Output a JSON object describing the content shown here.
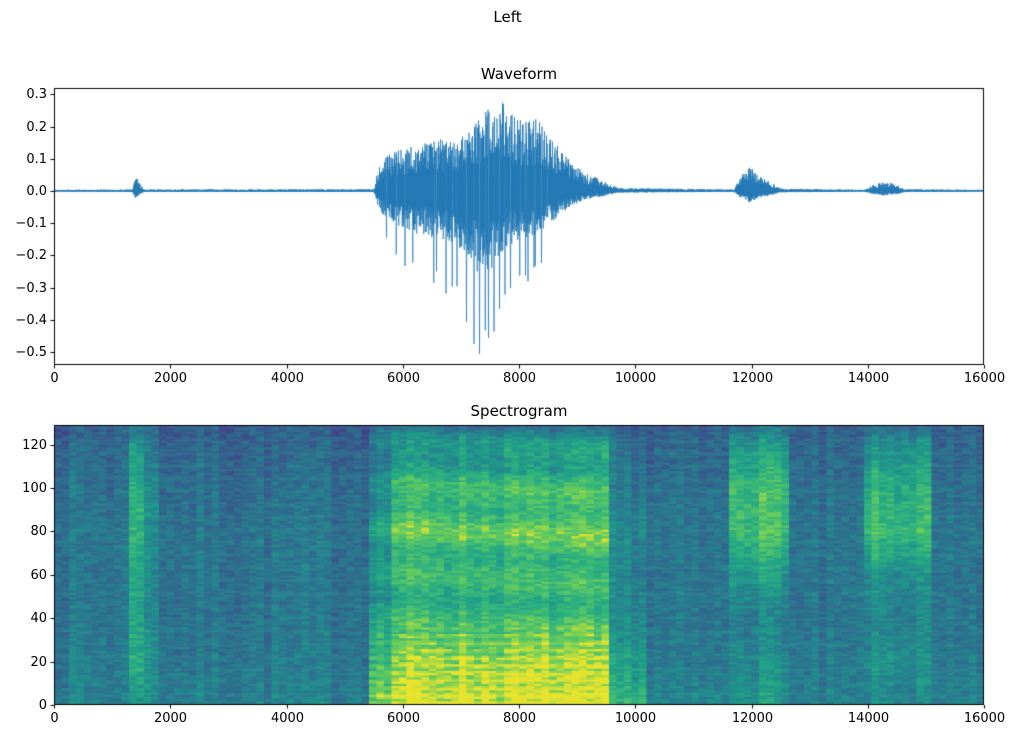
{
  "figure": {
    "title": "Left",
    "background": "#ffffff",
    "frame_color": "#000000",
    "text_color": "#000000"
  },
  "chart_data": [
    {
      "type": "line",
      "title": "Waveform",
      "line_color": "#1f77b4",
      "grid": false,
      "xlabel": "",
      "ylabel": "",
      "xlim": [
        0,
        16000
      ],
      "ylim": [
        -0.54,
        0.32
      ],
      "xtick_values": [
        0,
        2000,
        4000,
        6000,
        8000,
        10000,
        12000,
        14000,
        16000
      ],
      "xtick_labels": [
        "0",
        "2000",
        "4000",
        "6000",
        "8000",
        "10000",
        "12000",
        "14000",
        "16000"
      ],
      "ytick_values": [
        0.3,
        0.2,
        0.1,
        0.0,
        -0.1,
        -0.2,
        -0.3,
        -0.4,
        -0.5
      ],
      "ytick_labels": [
        "0.3",
        "0.2",
        "0.1",
        "0.0",
        "−0.1",
        "−0.2",
        "−0.3",
        "−0.4",
        "−0.5"
      ],
      "envelope": {
        "comment": "audio amplitude envelope vs sample index; pos = upper extent, neg = lower extent (magnitude)",
        "x": [
          0,
          1350,
          1400,
          1470,
          1550,
          5500,
          5600,
          5800,
          6200,
          6600,
          7000,
          7300,
          7500,
          7700,
          8000,
          8300,
          8600,
          8900,
          9200,
          9500,
          9700,
          11700,
          11800,
          11950,
          12100,
          12300,
          12500,
          13950,
          14100,
          14300,
          14500,
          14650,
          16000
        ],
        "pos": [
          0.004,
          0.005,
          0.05,
          0.03,
          0.005,
          0.006,
          0.09,
          0.12,
          0.14,
          0.16,
          0.17,
          0.22,
          0.27,
          0.28,
          0.22,
          0.23,
          0.16,
          0.09,
          0.05,
          0.03,
          0.01,
          0.005,
          0.04,
          0.08,
          0.05,
          0.03,
          0.008,
          0.004,
          0.02,
          0.03,
          0.02,
          0.006,
          0.004
        ],
        "neg": [
          0.004,
          0.005,
          0.045,
          0.025,
          0.005,
          0.006,
          0.12,
          0.2,
          0.26,
          0.3,
          0.36,
          0.52,
          0.5,
          0.4,
          0.3,
          0.27,
          0.18,
          0.09,
          0.05,
          0.03,
          0.01,
          0.005,
          0.04,
          0.07,
          0.05,
          0.03,
          0.008,
          0.004,
          0.02,
          0.03,
          0.02,
          0.006,
          0.004
        ]
      }
    },
    {
      "type": "heatmap",
      "title": "Spectrogram",
      "colormap": "viridis",
      "colormap_stops": [
        "#440154",
        "#482878",
        "#3e4989",
        "#31688e",
        "#26828e",
        "#1f9e89",
        "#35b779",
        "#6ece58",
        "#fde725"
      ],
      "xlabel": "",
      "ylabel": "",
      "xlim": [
        0,
        16000
      ],
      "ylim": [
        0,
        129
      ],
      "xtick_values": [
        0,
        2000,
        4000,
        6000,
        8000,
        10000,
        12000,
        14000,
        16000
      ],
      "xtick_labels": [
        "0",
        "2000",
        "4000",
        "6000",
        "8000",
        "10000",
        "12000",
        "14000",
        "16000"
      ],
      "ytick_values": [
        0,
        20,
        40,
        60,
        80,
        100,
        120
      ],
      "ytick_labels": [
        "0",
        "20",
        "40",
        "60",
        "80",
        "100",
        "120"
      ],
      "freq_anchors": [
        0,
        20,
        40,
        60,
        80,
        100,
        120,
        129
      ],
      "energy_segments": [
        {
          "x0": 0,
          "x1": 1280,
          "profile": [
            0.5,
            0.47,
            0.45,
            0.44,
            0.45,
            0.42,
            0.38,
            0.34
          ]
        },
        {
          "x0": 1280,
          "x1": 1580,
          "profile": [
            0.6,
            0.74,
            0.68,
            0.7,
            0.76,
            0.74,
            0.62,
            0.45
          ]
        },
        {
          "x0": 1580,
          "x1": 1820,
          "profile": [
            0.52,
            0.56,
            0.52,
            0.52,
            0.56,
            0.52,
            0.44,
            0.38
          ]
        },
        {
          "x0": 1820,
          "x1": 5450,
          "profile": [
            0.5,
            0.46,
            0.44,
            0.44,
            0.44,
            0.41,
            0.37,
            0.33
          ]
        },
        {
          "x0": 5450,
          "x1": 5750,
          "profile": [
            0.85,
            0.75,
            0.62,
            0.6,
            0.62,
            0.55,
            0.48,
            0.38
          ],
          "harmonics": true
        },
        {
          "x0": 5750,
          "x1": 9600,
          "profile": [
            0.96,
            0.9,
            0.74,
            0.72,
            0.82,
            0.74,
            0.58,
            0.42
          ],
          "harmonics": true
        },
        {
          "x0": 9600,
          "x1": 10250,
          "profile": [
            0.72,
            0.62,
            0.52,
            0.5,
            0.52,
            0.46,
            0.4,
            0.34
          ]
        },
        {
          "x0": 10250,
          "x1": 11650,
          "profile": [
            0.5,
            0.45,
            0.43,
            0.43,
            0.43,
            0.4,
            0.36,
            0.32
          ]
        },
        {
          "x0": 11650,
          "x1": 12700,
          "profile": [
            0.62,
            0.56,
            0.5,
            0.62,
            0.8,
            0.78,
            0.62,
            0.42
          ]
        },
        {
          "x0": 12700,
          "x1": 13900,
          "profile": [
            0.48,
            0.44,
            0.42,
            0.42,
            0.42,
            0.39,
            0.35,
            0.32
          ]
        },
        {
          "x0": 13900,
          "x1": 15150,
          "profile": [
            0.52,
            0.56,
            0.5,
            0.56,
            0.76,
            0.7,
            0.56,
            0.4
          ]
        },
        {
          "x0": 15150,
          "x1": 16000,
          "profile": [
            0.48,
            0.44,
            0.42,
            0.42,
            0.42,
            0.39,
            0.35,
            0.32
          ]
        }
      ]
    }
  ]
}
